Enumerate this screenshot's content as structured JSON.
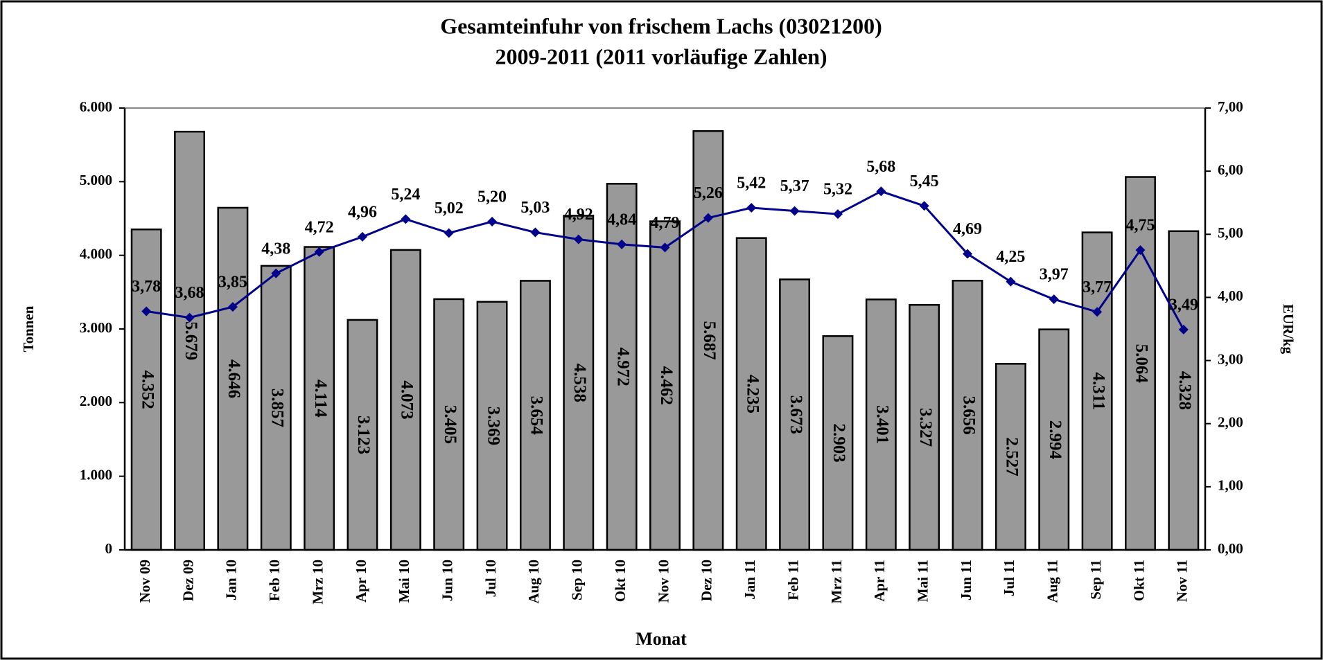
{
  "chart_data": {
    "type": "bar",
    "title": "Gesamteinfuhr von frischem Lachs (03021200)",
    "subtitle": "2009-2011 (2011 vorläufige Zahlen)",
    "x_label": "Monat",
    "y_label": "Tonnen",
    "y2_label": "EUR/kg",
    "categories": [
      "Nov 09",
      "Dez 09",
      "Jan 10",
      "Feb 10",
      "Mrz 10",
      "Apr 10",
      "Mai 10",
      "Jun 10",
      "Jul 10",
      "Aug 10",
      "Sep 10",
      "Okt 10",
      "Nov 10",
      "Dez 10",
      "Jan 11",
      "Feb 11",
      "Mrz 11",
      "Apr 11",
      "Mai 11",
      "Jun 11",
      "Jul 11",
      "Aug 11",
      "Sep 11",
      "Okt 11",
      "Nov 11"
    ],
    "series": [
      {
        "name": "Tonnen",
        "type": "bar",
        "color": "#999999",
        "values": [
          4352,
          5679,
          4646,
          3857,
          4114,
          3123,
          4073,
          3405,
          3369,
          3654,
          4538,
          4972,
          4462,
          5687,
          4235,
          3673,
          2903,
          3401,
          3327,
          3656,
          2527,
          2994,
          4311,
          5064,
          4328
        ],
        "value_labels": [
          "4.352",
          "5.679",
          "4.646",
          "3.857",
          "4.114",
          "3.123",
          "4.073",
          "3.405",
          "3.369",
          "3.654",
          "4.538",
          "4.972",
          "4.462",
          "5.687",
          "4.235",
          "3.673",
          "2.903",
          "3.401",
          "3.327",
          "3.656",
          "2.527",
          "2.994",
          "4.311",
          "5.064",
          "4.328"
        ]
      },
      {
        "name": "EUR/kg",
        "type": "line",
        "axis": "y2",
        "color": "#00008b",
        "values": [
          3.78,
          3.68,
          3.85,
          4.38,
          4.72,
          4.96,
          5.24,
          5.02,
          5.2,
          5.03,
          4.92,
          4.84,
          4.79,
          5.26,
          5.42,
          5.37,
          5.32,
          5.68,
          5.45,
          4.69,
          4.25,
          3.97,
          3.77,
          4.75,
          3.49
        ],
        "value_labels": [
          "3,78",
          "3,68",
          "3,85",
          "4,38",
          "4,72",
          "4,96",
          "5,24",
          "5,02",
          "5,20",
          "5,03",
          "4,92",
          "4,84",
          "4,79",
          "5,26",
          "5,42",
          "5,37",
          "5,32",
          "5,68",
          "5,45",
          "4,69",
          "4,25",
          "3,97",
          "3,77",
          "4,75",
          "3,49"
        ]
      }
    ],
    "ylim": [
      0,
      6000
    ],
    "yticks": [
      0,
      {
        "value": 1000,
        "label": "1.000"
      },
      {
        "value": 2000,
        "label": "2.000"
      },
      {
        "value": 3000,
        "label": "3.000"
      },
      {
        "value": 4000,
        "label": "4.000"
      },
      {
        "value": 5000,
        "label": "5.000"
      },
      {
        "value": 6000,
        "label": "6.000"
      }
    ],
    "y2lim": [
      0,
      7
    ],
    "y2ticks": [
      {
        "value": 0,
        "label": "0,00"
      },
      {
        "value": 1,
        "label": "1,00"
      },
      {
        "value": 2,
        "label": "2,00"
      },
      {
        "value": 3,
        "label": "3,00"
      },
      {
        "value": 4,
        "label": "4,00"
      },
      {
        "value": 5,
        "label": "5,00"
      },
      {
        "value": 6,
        "label": "6,00"
      },
      {
        "value": 7,
        "label": "7,00"
      }
    ]
  }
}
